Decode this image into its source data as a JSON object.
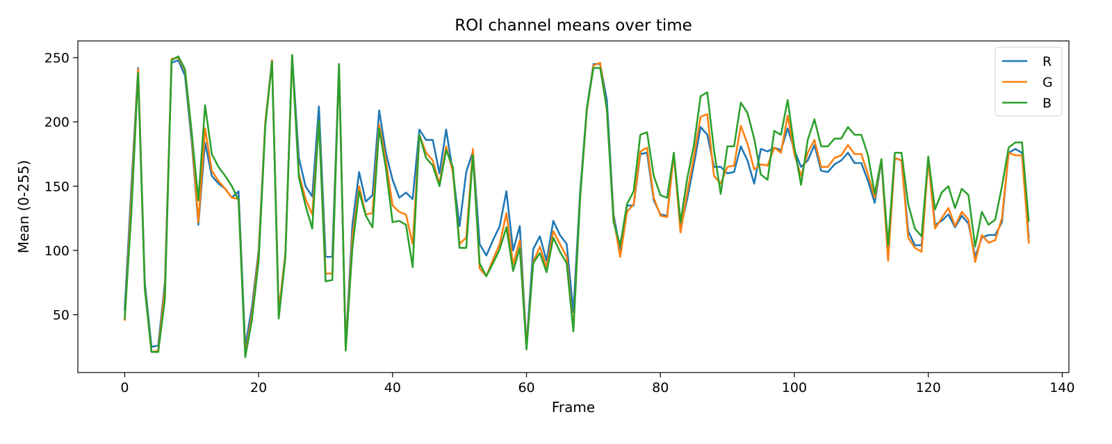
{
  "chart_data": {
    "type": "line",
    "title": "ROI channel means over time",
    "xlabel": "Frame",
    "ylabel": "Mean (0-255)",
    "xlim": [
      -7,
      141
    ],
    "ylim": [
      5,
      263
    ],
    "xticks": [
      0,
      20,
      40,
      60,
      80,
      100,
      120,
      140
    ],
    "yticks": [
      50,
      100,
      150,
      200,
      250
    ],
    "grid": false,
    "legend_position": "top-right",
    "series": [
      {
        "name": "R",
        "color": "#1f77b4",
        "values": [
          54,
          150,
          242,
          75,
          25,
          26,
          75,
          246,
          248,
          236,
          185,
          120,
          184,
          158,
          152,
          148,
          141,
          146,
          25,
          56,
          100,
          200,
          248,
          52,
          98,
          252,
          172,
          150,
          142,
          212,
          95,
          95,
          245,
          25,
          120,
          161,
          138,
          143,
          209,
          176,
          155,
          141,
          145,
          140,
          194,
          186,
          186,
          160,
          194,
          161,
          119,
          161,
          177,
          105,
          96,
          108,
          119,
          146,
          100,
          119,
          26,
          101,
          111,
          92,
          123,
          112,
          105,
          52,
          145,
          210,
          245,
          245,
          217,
          128,
          100,
          135,
          135,
          175,
          176,
          139,
          128,
          127,
          175,
          117,
          140,
          167,
          196,
          190,
          165,
          165,
          160,
          161,
          181,
          170,
          152,
          179,
          177,
          180,
          178,
          195,
          178,
          165,
          170,
          182,
          162,
          161,
          167,
          170,
          176,
          168,
          168,
          154,
          137,
          170,
          94,
          172,
          170,
          115,
          104,
          104,
          172,
          120,
          123,
          128,
          118,
          127,
          121,
          95,
          110,
          112,
          112,
          122,
          176,
          179,
          176,
          110
        ]
      },
      {
        "name": "G",
        "color": "#ff7f0e",
        "values": [
          46,
          140,
          241,
          71,
          21,
          22,
          70,
          249,
          250,
          240,
          190,
          122,
          195,
          162,
          154,
          148,
          141,
          140,
          19,
          50,
          97,
          200,
          248,
          52,
          98,
          251,
          160,
          140,
          128,
          201,
          82,
          82,
          245,
          23,
          110,
          150,
          128,
          129,
          198,
          170,
          135,
          130,
          128,
          105,
          190,
          176,
          170,
          152,
          181,
          161,
          105,
          110,
          179,
          86,
          80,
          93,
          105,
          129,
          89,
          108,
          25,
          91,
          103,
          87,
          115,
          105,
          95,
          38,
          141,
          208,
          244,
          246,
          209,
          125,
          95,
          130,
          136,
          177,
          180,
          141,
          127,
          126,
          175,
          114,
          145,
          173,
          204,
          206,
          158,
          152,
          165,
          166,
          197,
          183,
          163,
          167,
          166,
          180,
          176,
          205,
          175,
          158,
          176,
          186,
          165,
          165,
          172,
          174,
          182,
          175,
          175,
          159,
          141,
          171,
          92,
          172,
          170,
          110,
          102,
          99,
          170,
          117,
          125,
          133,
          119,
          130,
          124,
          91,
          112,
          106,
          108,
          125,
          176,
          174,
          174,
          106
        ]
      },
      {
        "name": "B",
        "color": "#2ca02c",
        "values": [
          47,
          130,
          238,
          70,
          21,
          21,
          62,
          248,
          251,
          241,
          192,
          139,
          213,
          175,
          165,
          158,
          150,
          139,
          17,
          46,
          92,
          197,
          247,
          47,
          95,
          252,
          157,
          135,
          117,
          201,
          76,
          77,
          245,
          22,
          102,
          146,
          127,
          118,
          195,
          164,
          122,
          123,
          120,
          87,
          190,
          172,
          166,
          150,
          178,
          165,
          102,
          102,
          174,
          90,
          80,
          90,
          101,
          118,
          84,
          102,
          23,
          90,
          98,
          83,
          110,
          99,
          90,
          37,
          140,
          210,
          242,
          242,
          210,
          122,
          104,
          136,
          146,
          190,
          192,
          158,
          143,
          141,
          176,
          122,
          156,
          182,
          220,
          223,
          178,
          144,
          181,
          181,
          215,
          207,
          187,
          159,
          155,
          193,
          190,
          217,
          180,
          151,
          186,
          202,
          181,
          181,
          187,
          187,
          196,
          190,
          190,
          174,
          144,
          171,
          104,
          176,
          176,
          136,
          117,
          111,
          173,
          132,
          145,
          150,
          133,
          148,
          143,
          103,
          130,
          120,
          124,
          150,
          180,
          184,
          184,
          123
        ]
      }
    ]
  }
}
